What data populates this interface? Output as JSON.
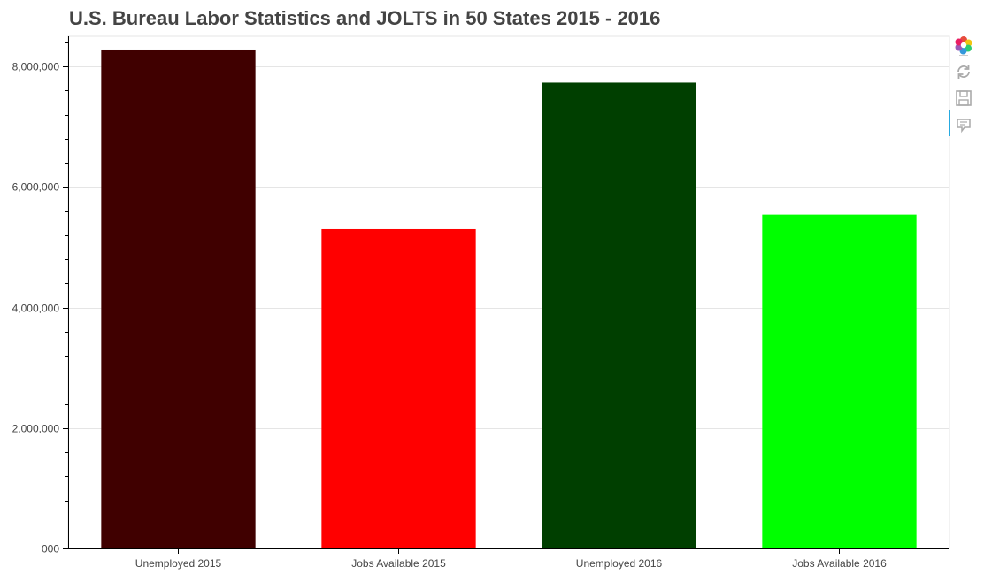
{
  "chart_data": {
    "type": "bar",
    "title": "U.S. Bureau Labor Statistics and JOLTS in 50 States 2015 - 2016",
    "xlabel": "",
    "ylabel": "",
    "categories": [
      "Unemployed 2015",
      "Jobs Available 2015",
      "Unemployed 2016",
      "Jobs Available 2016"
    ],
    "values": [
      8280000,
      5300000,
      7730000,
      5540000
    ],
    "colors": [
      "#400000",
      "#ff0000",
      "#003f00",
      "#00ff00"
    ],
    "ylim": [
      0,
      8500000
    ],
    "yticks": [
      0,
      2000000,
      4000000,
      6000000,
      8000000
    ],
    "ytick_labels": [
      "000",
      "2,000,000",
      "4,000,000",
      "6,000,000",
      "8,000,000"
    ],
    "grid": true,
    "legend": "none"
  },
  "toolbar": {
    "tools": [
      "bokeh-logo-icon",
      "reset-icon",
      "save-icon",
      "hover-icon"
    ]
  }
}
